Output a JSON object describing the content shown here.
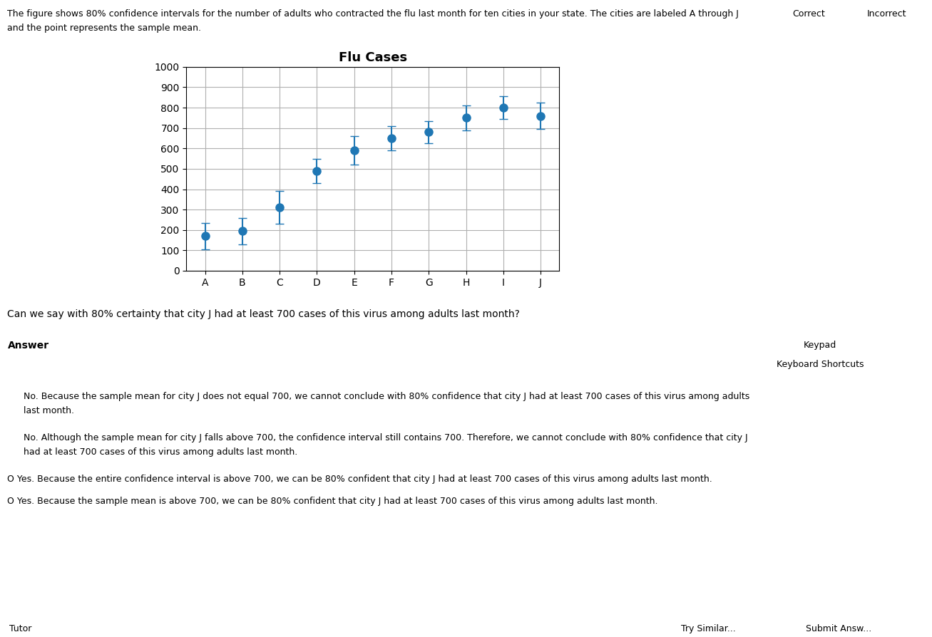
{
  "chart_data": {
    "type": "errorbar",
    "title": "Flu Cases",
    "categories": [
      "A",
      "B",
      "C",
      "D",
      "E",
      "F",
      "G",
      "H",
      "I",
      "J"
    ],
    "values": [
      170,
      195,
      310,
      490,
      590,
      650,
      680,
      750,
      800,
      760
    ],
    "errors": [
      65,
      65,
      80,
      60,
      70,
      60,
      55,
      60,
      55,
      65
    ],
    "ylim": [
      0,
      1000
    ],
    "yticks": [
      0,
      100,
      200,
      300,
      400,
      500,
      600,
      700,
      800,
      900,
      1000
    ],
    "grid": true,
    "marker": "o",
    "annotations": [
      "The figure shows 80% confidence intervals for the number of adults who contracted the flu last month for ten cities in your state. The cities are labeled A through J",
      "and the point represents the sample mean.",
      "Correct",
      "Incorrect",
      "Can we say with 80% certainty that city J had at least 700 cases of this virus among adults last month?",
      "Answer",
      "Keypad",
      "Keyboard Shortcuts",
      "No. Because the sample mean for city J does not equal 700, we cannot conclude with 80% confidence that city J had at least 700 cases of this virus among adults",
      "last month.",
      "No. Although the sample mean for city J falls above 700, the confidence interval still contains 700. Therefore, we cannot conclude with 80% confidence that city J",
      "had at least 700 cases of this virus among adults last month.",
      "O Yes. Because the entire confidence interval is above 700, we can be 80% confident that city J had at least 700 cases of this virus among adults last month.",
      "O Yes. Because the sample mean is above 700, we can be 80% confident that city J had at least 700 cases of this virus among adults last month.",
      "Tutor",
      "Try Similar...",
      "Submit Answ..."
    ]
  }
}
